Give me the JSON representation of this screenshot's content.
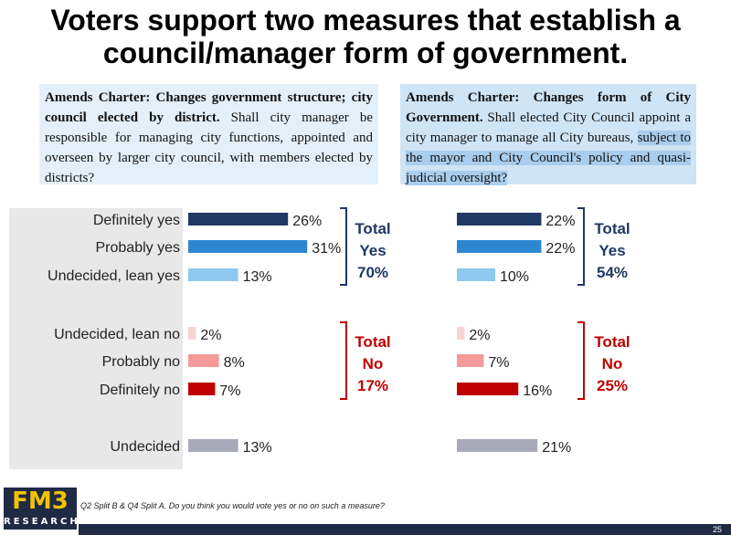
{
  "title": "Voters support two measures that establish a council/manager form of government.",
  "questions": {
    "left": {
      "bold": "Amends Charter: Changes government structure; city council elected by district.",
      "text": " Shall city manager be responsible for managing city functions, appointed and overseen by larger city council, with members elected by districts?"
    },
    "right": {
      "bold": "Amends Charter: Changes form of City Government.",
      "text": " Shall elected City Council appoint a city manager to manage all City bureaus, ",
      "highlight": "subject to the mayor and City Council's policy and quasi-judicial oversight?"
    }
  },
  "chart_data": {
    "type": "bar",
    "orientation": "horizontal",
    "categories": [
      "Definitely yes",
      "Probably yes",
      "Undecided, lean yes",
      "Undecided, lean no",
      "Probably no",
      "Definitely no",
      "Undecided"
    ],
    "colors": [
      "#1f3864",
      "#2e86d1",
      "#8ec9f0",
      "#f7d3d3",
      "#f59a9a",
      "#c00000",
      "#a8a9b9"
    ],
    "series": [
      {
        "values": [
          26,
          31,
          13,
          2,
          8,
          7,
          13
        ]
      },
      {
        "values": [
          22,
          22,
          10,
          2,
          7,
          16,
          21
        ]
      }
    ],
    "totals": [
      {
        "yes": [
          "Total",
          "Yes",
          "70%"
        ],
        "no": [
          "Total",
          "No",
          "17%"
        ]
      },
      {
        "yes": [
          "Total",
          "Yes",
          "54%"
        ],
        "no": [
          "Total",
          "No",
          "25%"
        ]
      }
    ],
    "total_colors": {
      "yes": "#1f3864",
      "no": "#c00000"
    }
  },
  "footer": {
    "logo_main": "FM3",
    "logo_sub": "RESEARCH",
    "footnote": "Q2 Split B & Q4 Split A. Do you think you would vote yes or no on such a measure?",
    "page": "25"
  }
}
